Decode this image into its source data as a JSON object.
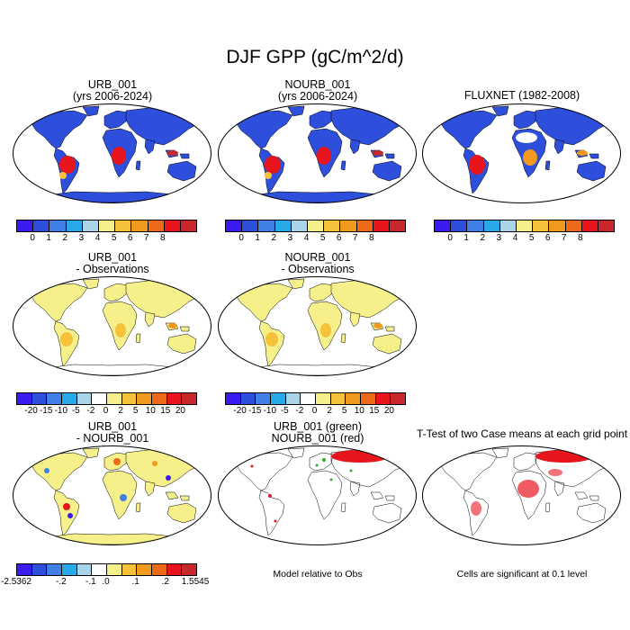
{
  "title": "DJF GPP (gC/m^2/d)",
  "panels": {
    "urb": {
      "line1": "URB_001",
      "line2": "(yrs 2006-2024)"
    },
    "nourb": {
      "line1": "NOURB_001",
      "line2": "(yrs 2006-2024)"
    },
    "fluxnet": {
      "line1": "FLUXNET (1982-2008)"
    },
    "urb_obs": {
      "line1": "URB_001",
      "line2": "- Observations"
    },
    "nourb_obs": {
      "line1": "NOURB_001",
      "line2": "- Observations"
    },
    "urb_nourb": {
      "line1": "URB_001",
      "line2": "- NOURB_001"
    },
    "sig": {
      "line1": "URB_001 (green)",
      "line2": "NOURB_001 (red)"
    },
    "ttest": {
      "line1": "T-Test of two Case means at each grid point"
    }
  },
  "colorbars": {
    "abs": {
      "colors": [
        "#3a1cf0",
        "#2e4fdb",
        "#3f7fe6",
        "#29a9e8",
        "#a9d4ea",
        "#f5f08a",
        "#f6c23a",
        "#f29a1e",
        "#ee6a17",
        "#e8151c",
        "#c8272c"
      ],
      "labels": [
        "0",
        "1",
        "2",
        "3",
        "4",
        "5",
        "6",
        "7",
        "8"
      ]
    },
    "diff": {
      "colors": [
        "#3a1cf0",
        "#2e4fdb",
        "#3f7fe6",
        "#29a9e8",
        "#a9d4ea",
        "#ffffff",
        "#f5f08a",
        "#f6c23a",
        "#f29a1e",
        "#ee6a17",
        "#e8151c",
        "#c8272c"
      ],
      "labels": [
        "-20",
        "-15",
        "-10",
        "-5",
        "-2",
        "0",
        "2",
        "5",
        "10",
        "15",
        "20"
      ]
    },
    "case": {
      "colors": [
        "#3a1cf0",
        "#2e4fdb",
        "#3f7fe6",
        "#29a9e8",
        "#a9d4ea",
        "#ffffff",
        "#f5f08a",
        "#f6c23a",
        "#f29a1e",
        "#ee6a17",
        "#e8151c",
        "#c8272c"
      ],
      "labels": [
        "-2.5362",
        "-.2",
        "-.1",
        ".0",
        ".1",
        ".2",
        "1.5545"
      ]
    }
  },
  "notes": {
    "model_rel": "Model relative to Obs",
    "cells_sig": "Cells are significant at 0.1 level"
  }
}
